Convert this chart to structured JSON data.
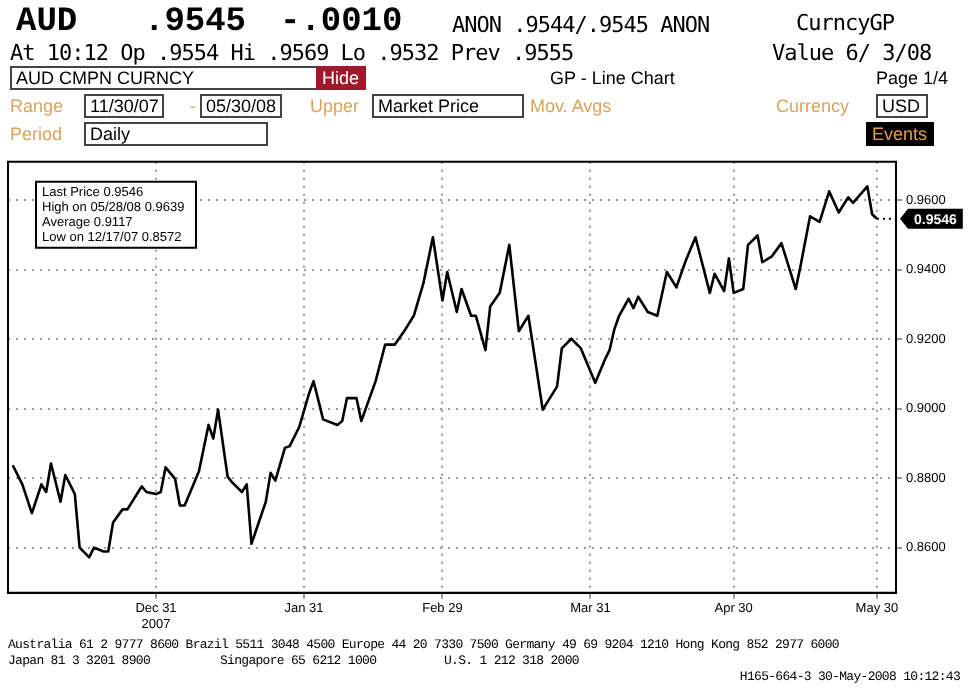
{
  "chart_data": {
    "type": "line",
    "title": "AUD",
    "annotations": [
      ".9545",
      "-.0010",
      "ANON .9544/.9545 ANON",
      "CurncyGP",
      "At 10:12 Op .9554  Hi .9569  Lo .9532  Prev .9555",
      "Value  6/ 3/08",
      "AUD CMPN CURNCY",
      "Hide",
      "GP - Line Chart",
      "Page 1/4",
      "Range",
      "11/30/07",
      "-",
      "05/30/08",
      "Upper",
      "Market Price",
      "Mov. Avgs",
      "Currency",
      "USD",
      "Period",
      "Daily",
      "Events",
      "Last Price 0.9546",
      "High on 05/28/08 0.9639",
      "Average 0.9117",
      "Low on 12/17/07 0.8572",
      {
        "text": "0.9546",
        "x": "2008-05-30",
        "y": 0.9546
      },
      "Australia 61 2 9777 8600 Brazil 5511 3048 4500 Europe 44 20 7330 7500 Germany 49 69 9204 1210 Hong Kong 852 2977 6000",
      "Japan 81 3 3201 8900",
      "Singapore 65 6212 1000",
      "U.S. 1 212 318 2000",
      "H165-664-3 30-May-2008 10:12:43"
    ],
    "x": [
      "2007-12-01",
      "2007-12-03",
      "2007-12-05",
      "2007-12-07",
      "2007-12-08",
      "2007-12-09",
      "2007-12-11",
      "2007-12-12",
      "2007-12-14",
      "2007-12-15",
      "2007-12-17",
      "2007-12-18",
      "2007-12-20",
      "2007-12-21",
      "2007-12-22",
      "2007-12-24",
      "2007-12-25",
      "2007-12-28",
      "2007-12-29",
      "2007-12-31",
      "2008-01-01",
      "2008-01-02",
      "2008-01-04",
      "2008-01-05",
      "2008-01-06",
      "2008-01-09",
      "2008-01-11",
      "2008-01-12",
      "2008-01-13",
      "2008-01-15",
      "2008-01-16",
      "2008-01-18",
      "2008-01-19",
      "2008-01-20",
      "2008-01-23",
      "2008-01-24",
      "2008-01-25",
      "2008-01-27",
      "2008-01-28",
      "2008-01-30",
      "2008-02-01",
      "2008-02-02",
      "2008-02-04",
      "2008-02-07",
      "2008-02-08",
      "2008-02-09",
      "2008-02-11",
      "2008-02-12",
      "2008-02-15",
      "2008-02-17",
      "2008-02-19",
      "2008-02-21",
      "2008-02-23",
      "2008-02-25",
      "2008-02-27",
      "2008-02-29",
      "2008-03-01",
      "2008-03-03",
      "2008-03-04",
      "2008-03-06",
      "2008-03-07",
      "2008-03-09",
      "2008-03-10",
      "2008-03-12",
      "2008-03-14",
      "2008-03-16",
      "2008-03-18",
      "2008-03-21",
      "2008-03-24",
      "2008-03-25",
      "2008-03-27",
      "2008-03-29",
      "2008-04-01",
      "2008-04-03",
      "2008-04-04",
      "2008-04-05",
      "2008-04-06",
      "2008-04-08",
      "2008-04-09",
      "2008-04-10",
      "2008-04-12",
      "2008-04-14",
      "2008-04-16",
      "2008-04-18",
      "2008-04-20",
      "2008-04-22",
      "2008-04-25",
      "2008-04-26",
      "2008-04-28",
      "2008-04-29",
      "2008-04-30",
      "2008-05-02",
      "2008-05-03",
      "2008-05-05",
      "2008-05-06",
      "2008-05-08",
      "2008-05-10",
      "2008-05-13",
      "2008-05-14",
      "2008-05-16",
      "2008-05-18",
      "2008-05-20",
      "2008-05-22",
      "2008-05-24",
      "2008-05-25",
      "2008-05-28",
      "2008-05-29",
      "2008-05-30"
    ],
    "series": [
      {
        "color": "#000000",
        "values": [
          0.8837,
          0.8782,
          0.8699,
          0.8782,
          0.876,
          0.8842,
          0.8732,
          0.8809,
          0.8754,
          0.86,
          0.8572,
          0.86,
          0.8589,
          0.8589,
          0.8672,
          0.871,
          0.871,
          0.8776,
          0.876,
          0.8754,
          0.876,
          0.8831,
          0.8798,
          0.8721,
          0.8721,
          0.882,
          0.8953,
          0.8914,
          0.8997,
          0.8804,
          0.8787,
          0.876,
          0.8782,
          0.8611,
          0.8732,
          0.8815,
          0.8793,
          0.8887,
          0.8892,
          0.8947,
          0.9041,
          0.9079,
          0.8969,
          0.8953,
          0.8964,
          0.903,
          0.903,
          0.8964,
          0.9079,
          0.9184,
          0.9184,
          0.9223,
          0.9267,
          0.936,
          0.9493,
          0.9311,
          0.9393,
          0.9278,
          0.9344,
          0.9267,
          0.9267,
          0.9168,
          0.9294,
          0.9333,
          0.9471,
          0.9223,
          0.9267,
          0.8997,
          0.9063,
          0.9173,
          0.9201,
          0.9173,
          0.9074,
          0.914,
          0.9168,
          0.9228,
          0.9267,
          0.9316,
          0.9289,
          0.9322,
          0.9278,
          0.9267,
          0.9393,
          0.9349,
          0.9427,
          0.9493,
          0.9333,
          0.9388,
          0.9338,
          0.9432,
          0.9333,
          0.9344,
          0.9471,
          0.9498,
          0.9421,
          0.9438,
          0.9476,
          0.9344,
          0.941,
          0.9553,
          0.9537,
          0.9625,
          0.9564,
          0.9608,
          0.9592,
          0.9639,
          0.9559,
          0.9546
        ]
      }
    ],
    "xlim": [
      "2007-11-30",
      "2008-06-03"
    ],
    "xticks": [
      {
        "value": "2007-12-31",
        "label": "Dec 31\n2007"
      },
      {
        "value": "2008-01-31",
        "label": "Jan 31"
      },
      {
        "value": "2008-02-29",
        "label": "Feb 29"
      },
      {
        "value": "2008-03-31",
        "label": "Mar 31"
      },
      {
        "value": "2008-04-30",
        "label": "Apr 30"
      },
      {
        "value": "2008-05-30",
        "label": "May 30"
      }
    ],
    "ylim": [
      0.847,
      0.971
    ],
    "yticks": [
      {
        "value": 0.86,
        "label": "0.8600"
      },
      {
        "value": 0.88,
        "label": "0.8800"
      },
      {
        "value": 0.9,
        "label": "0.9000"
      },
      {
        "value": 0.92,
        "label": "0.9200"
      },
      {
        "value": 0.94,
        "label": "0.9400"
      },
      {
        "value": 0.96,
        "label": "0.9600"
      }
    ],
    "grid": true,
    "legend": false,
    "marker": "none",
    "line_style": "solid"
  }
}
